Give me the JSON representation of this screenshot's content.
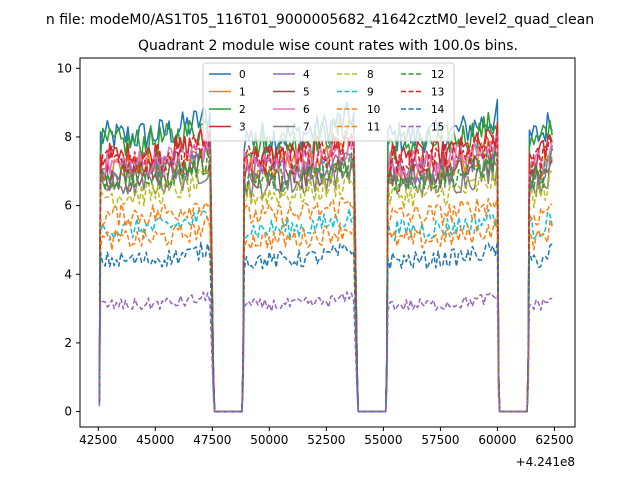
{
  "chart_data": {
    "type": "line",
    "suptitle": "n file: modeM0/AS1T05_116T01_9000005682_41642cztM0_level2_quad_clean",
    "title": "Quadrant 2 module wise count rates with 100.0s bins.",
    "xlabel": "",
    "ylabel": "",
    "x_offset_label": "+4.241e8",
    "xlim": [
      41700,
      63400
    ],
    "ylim": [
      -0.45,
      10.3
    ],
    "x_ticks": [
      42500,
      45000,
      47500,
      50000,
      52500,
      55000,
      57500,
      60000,
      62500
    ],
    "x_tick_labels": [
      "42500",
      "45000",
      "47500",
      "50000",
      "52500",
      "55000",
      "57500",
      "60000",
      "62500"
    ],
    "y_ticks": [
      0,
      2,
      4,
      6,
      8,
      10
    ],
    "y_tick_labels": [
      "0",
      "2",
      "4",
      "6",
      "8",
      "10"
    ],
    "grid": false,
    "legend_location": "top-center",
    "legend_columns": 4,
    "segments": [
      {
        "x_start": 42600,
        "x_end": 47400
      },
      {
        "x_start": 48900,
        "x_end": 53700
      },
      {
        "x_start": 55200,
        "x_end": 60000
      },
      {
        "x_start": 61400,
        "x_end": 62400
      }
    ],
    "gaps": [
      {
        "x_start": 47600,
        "x_end": 48800,
        "value": 0
      },
      {
        "x_start": 53900,
        "x_end": 55100,
        "value": 0
      },
      {
        "x_start": 60100,
        "x_end": 61300,
        "value": 0
      }
    ],
    "series": [
      {
        "name": "0",
        "color": "#1f77b4",
        "dash": "solid",
        "level": 8.0
      },
      {
        "name": "1",
        "color": "#ff7f0e",
        "dash": "solid",
        "level": 7.1
      },
      {
        "name": "2",
        "color": "#2ca02c",
        "dash": "solid",
        "level": 7.8
      },
      {
        "name": "3",
        "color": "#d62728",
        "dash": "solid",
        "level": 7.4
      },
      {
        "name": "4",
        "color": "#9467bd",
        "dash": "solid",
        "level": 7.0
      },
      {
        "name": "5",
        "color": "#8c564b",
        "dash": "solid",
        "level": 6.8
      },
      {
        "name": "6",
        "color": "#e377c2",
        "dash": "solid",
        "level": 7.2
      },
      {
        "name": "7",
        "color": "#7f7f7f",
        "dash": "solid",
        "level": 6.6
      },
      {
        "name": "8",
        "color": "#bcbd22",
        "dash": "dashed",
        "level": 6.3
      },
      {
        "name": "9",
        "color": "#17becf",
        "dash": "dashed",
        "level": 5.3
      },
      {
        "name": "10",
        "color": "#ff7f0e",
        "dash": "dashed",
        "level": 5.0
      },
      {
        "name": "11",
        "color": "#ff7f0e",
        "dash": "dashed",
        "level": 5.7
      },
      {
        "name": "12",
        "color": "#2ca02c",
        "dash": "dashed",
        "level": 6.8
      },
      {
        "name": "13",
        "color": "#d62728",
        "dash": "dashed",
        "level": 7.3
      },
      {
        "name": "14",
        "color": "#1f77b4",
        "dash": "dashed",
        "level": 4.4
      },
      {
        "name": "15",
        "color": "#9467bd",
        "dash": "dashed",
        "level": 3.1
      }
    ]
  }
}
